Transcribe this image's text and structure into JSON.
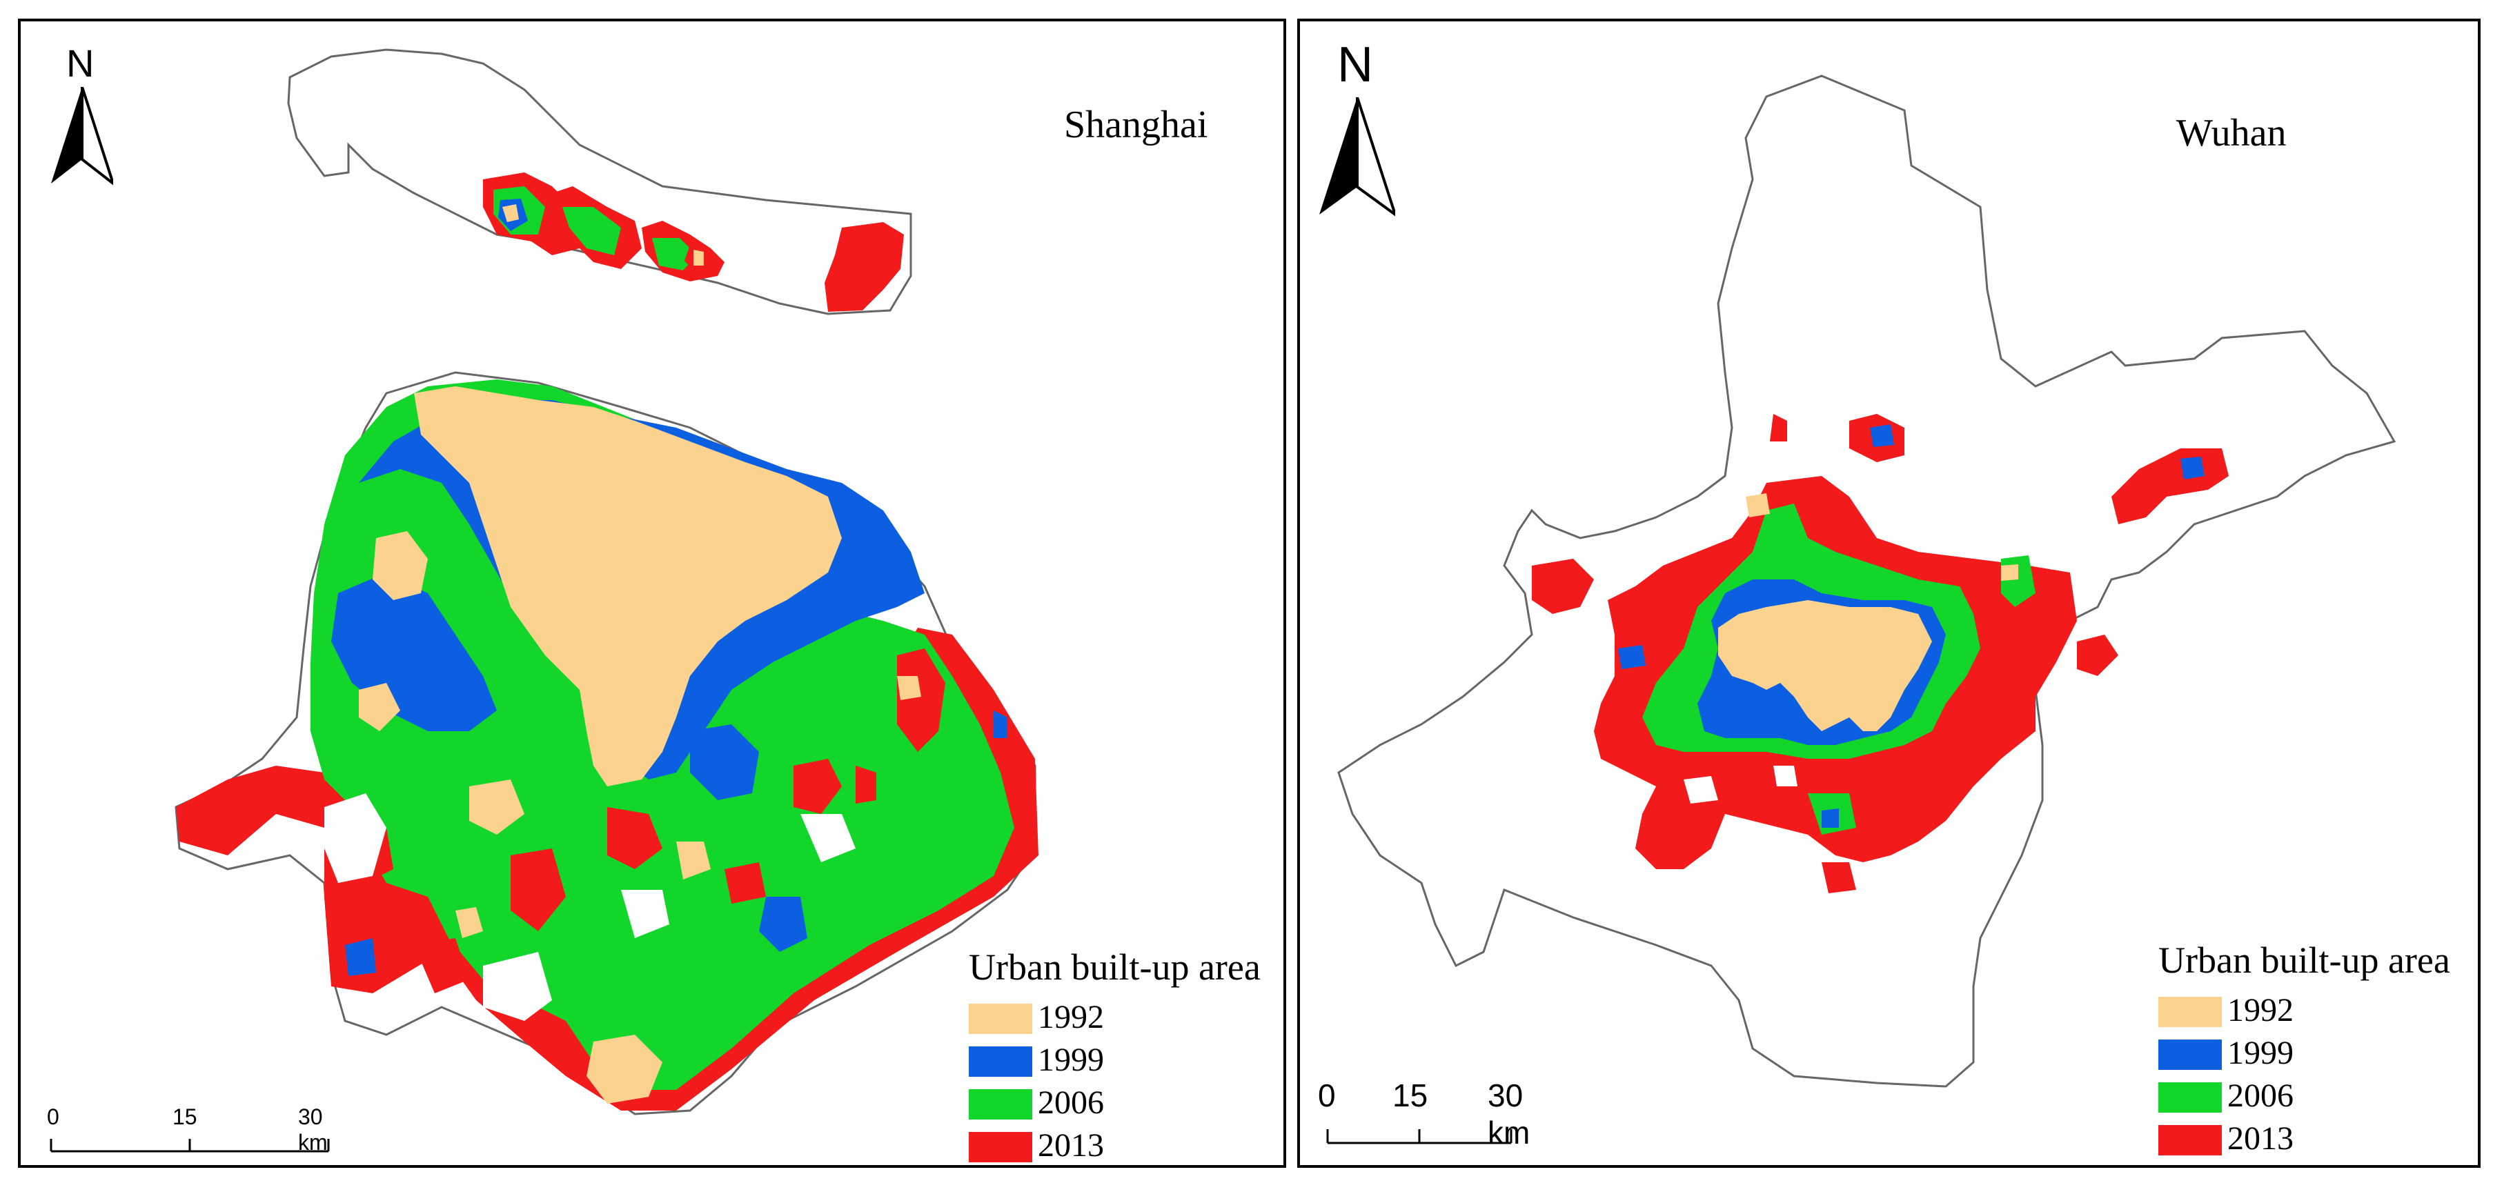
{
  "colors": {
    "y1992": "#fcd28f",
    "y1999": "#0b5fe0",
    "y2006": "#12d62a",
    "y2013": "#f21a1a",
    "boundary": "#666666"
  },
  "shanghai": {
    "title": "Shanghai",
    "north_label": "N",
    "legend_title": "Urban built-up area",
    "legend": [
      {
        "label": "1992",
        "color": "#fcd28f"
      },
      {
        "label": "1999",
        "color": "#0b5fe0"
      },
      {
        "label": "2006",
        "color": "#12d62a"
      },
      {
        "label": "2013",
        "color": "#f21a1a"
      }
    ],
    "scale": {
      "t0": "0",
      "t1": "15",
      "t2": "30 km"
    }
  },
  "wuhan": {
    "title": "Wuhan",
    "north_label": "N",
    "legend_title": "Urban built-up area",
    "legend": [
      {
        "label": "1992",
        "color": "#fcd28f"
      },
      {
        "label": "1999",
        "color": "#0b5fe0"
      },
      {
        "label": "2006",
        "color": "#12d62a"
      },
      {
        "label": "2013",
        "color": "#f21a1a"
      }
    ],
    "scale": {
      "t0": "0",
      "t1": "15",
      "t2": "30 km"
    }
  }
}
